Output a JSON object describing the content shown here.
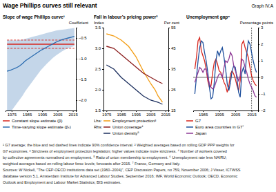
{
  "title": "Wage Phillips curves still relevant",
  "graph_label": "Graph IV.A",
  "chart_data": [
    {
      "type": "line",
      "title": "Slope of wage Phillips curve¹",
      "ylabel": "Coefficient",
      "xlim": [
        1971,
        2017
      ],
      "xticks": [
        1975,
        1985,
        1995,
        2005,
        2015
      ],
      "ylim": [
        -2.25,
        -0.25
      ],
      "yticks": [
        {
          "value": -2,
          "label": "–2.0"
        },
        {
          "value": -1.5,
          "label": "–1.5"
        },
        {
          "value": -1,
          "label": "–1.0"
        },
        {
          "value": -0.5,
          "label": "–0.5"
        }
      ],
      "series": [
        {
          "name": "Constant slope estimate (β)",
          "type": "line",
          "color": "#d7261e",
          "x": [
            1972,
            2016
          ],
          "values": [
            -0.65,
            -0.65
          ],
          "lower": [
            -0.75,
            -0.75
          ],
          "upper": [
            -0.55,
            -0.55
          ]
        },
        {
          "name": "Time-varying slope estimate (βₜ)",
          "type": "band",
          "color": "#2b6cb0",
          "x": [
            1972,
            1974,
            1976,
            1978,
            1980,
            1982,
            1984,
            1986,
            1988,
            1990,
            1992,
            1994,
            1996,
            1998,
            2000,
            2002,
            2004,
            2006,
            2008,
            2010,
            2012,
            2014,
            2016
          ],
          "values": [
            -1.3,
            -1.28,
            -1.25,
            -1.22,
            -1.18,
            -1.12,
            -1.05,
            -1.0,
            -0.95,
            -0.9,
            -0.85,
            -0.8,
            -0.76,
            -0.72,
            -0.68,
            -0.64,
            -0.6,
            -0.57,
            -0.54,
            -0.52,
            -0.5,
            -0.48,
            -0.46
          ],
          "lower": [
            -2.4,
            -2.3,
            -2.2,
            -2.1,
            -2.0,
            -1.9,
            -1.78,
            -1.68,
            -1.58,
            -1.48,
            -1.38,
            -1.28,
            -1.2,
            -1.12,
            -1.05,
            -0.98,
            -0.92,
            -0.87,
            -0.82,
            -0.78,
            -0.75,
            -0.72,
            -0.69
          ],
          "upper": [
            -0.55,
            -0.56,
            -0.56,
            -0.56,
            -0.55,
            -0.54,
            -0.52,
            -0.5,
            -0.48,
            -0.46,
            -0.44,
            -0.42,
            -0.4,
            -0.38,
            -0.36,
            -0.34,
            -0.32,
            -0.31,
            -0.3,
            -0.29,
            -0.28,
            -0.27,
            -0.26
          ]
        }
      ]
    },
    {
      "type": "line",
      "title": "Fall in labour’s pricing power²",
      "ylabel": "Index",
      "y2label": "Per cent",
      "lhs_label": "Lhs:",
      "rhs_label": "Rhs:",
      "xlim": [
        1973,
        2017
      ],
      "xticks": [
        1975,
        1985,
        1995,
        2005,
        2015
      ],
      "ylim": [
        1.5,
        3.5
      ],
      "yticks": [
        1.5,
        {
          "value": 2,
          "label": "2.0"
        },
        2.5,
        {
          "value": 3,
          "label": "3.0"
        },
        3.5
      ],
      "y2lim": [
        15,
        55
      ],
      "y2ticks": [
        15,
        25,
        35,
        45,
        55
      ],
      "series": [
        {
          "name": "Employment protection³",
          "color": "#f39c12",
          "x": [
            1975,
            1980,
            1985,
            1990,
            1995,
            2000,
            2005,
            2008,
            2010,
            2013
          ],
          "values": [
            3.35,
            3.3,
            3.2,
            3.05,
            2.8,
            2.45,
            2.15,
            2.0,
            1.85,
            1.7
          ]
        },
        {
          "name": "Union coverage⁴",
          "color": "#8b1c1c",
          "axis": "y2",
          "x": [
            1975,
            1980,
            1985,
            1990,
            1995,
            2000,
            2005,
            2010,
            2013
          ],
          "values": [
            46,
            45,
            42,
            39,
            36,
            33,
            31,
            29,
            28
          ]
        },
        {
          "name": "Union density⁵",
          "color": "#1c2f5e",
          "axis": "y2",
          "x": [
            1975,
            1980,
            1985,
            1990,
            1995,
            2000,
            2005,
            2010,
            2013
          ],
          "values": [
            37,
            35,
            31,
            28,
            25,
            22,
            20,
            19,
            18
          ]
        }
      ]
    },
    {
      "type": "line",
      "title": "Unemployment gap⁶",
      "ylabel": "Percentage points",
      "xlim": [
        1979,
        2019
      ],
      "xticks": [
        1985,
        1995,
        2005,
        2015
      ],
      "ylim": [
        -2,
        3
      ],
      "yticks": [
        {
          "value": -2,
          "label": "–2"
        },
        {
          "value": -1,
          "label": "–1"
        },
        0,
        1,
        2,
        3
      ],
      "forecast_after": 2015,
      "series": [
        {
          "name": "G7",
          "color": "#d7261e",
          "x": [
            1980,
            1981,
            1982,
            1983,
            1984,
            1985,
            1986,
            1987,
            1988,
            1989,
            1990,
            1991,
            1992,
            1993,
            1994,
            1995,
            1996,
            1997,
            1998,
            1999,
            2000,
            2001,
            2002,
            2003,
            2004,
            2005,
            2006,
            2007,
            2008,
            2009,
            2010,
            2011,
            2012,
            2013,
            2014,
            2015,
            2016,
            2017,
            2018
          ],
          "values": [
            0.5,
            1.2,
            2.2,
            2.4,
            1.6,
            1.3,
            1.0,
            0.5,
            -0.2,
            -0.6,
            -0.5,
            0.3,
            0.9,
            1.1,
            0.8,
            0.4,
            0.3,
            0,
            -0.3,
            -0.5,
            -0.9,
            -0.5,
            0.2,
            0.4,
            0.2,
            -0.1,
            -0.5,
            -0.8,
            -0.2,
            2.0,
            2.2,
            1.8,
            1.5,
            1.2,
            0.6,
            0.1,
            -0.2,
            -0.4,
            -0.5
          ]
        },
        {
          "name": "Euro area countries in G7⁷",
          "color": "#1e4f9c",
          "x": [
            1980,
            1981,
            1982,
            1983,
            1984,
            1985,
            1986,
            1987,
            1988,
            1989,
            1990,
            1991,
            1992,
            1993,
            1994,
            1995,
            1996,
            1997,
            1998,
            1999,
            2000,
            2001,
            2002,
            2003,
            2004,
            2005,
            2006,
            2007,
            2008,
            2009,
            2010,
            2011,
            2012,
            2013,
            2014,
            2015,
            2016,
            2017,
            2018
          ],
          "values": [
            -1.0,
            0,
            1.0,
            1.8,
            2.2,
            2.1,
            1.5,
            1.0,
            0.3,
            -0.6,
            -1.3,
            -1.2,
            -0.3,
            1.0,
            1.6,
            1.3,
            1.6,
            1.8,
            1.2,
            0.5,
            -0.4,
            -0.8,
            -0.3,
            0.4,
            0.7,
            0.6,
            -0.1,
            -0.9,
            -1.2,
            0.3,
            0.6,
            0.2,
            1.4,
            2.2,
            2.0,
            1.5,
            1.0,
            0.6,
            0.3
          ]
        },
        {
          "name": "Japan",
          "color": "#8e3a96",
          "x": [
            1980,
            1981,
            1982,
            1983,
            1984,
            1985,
            1986,
            1987,
            1988,
            1989,
            1990,
            1991,
            1992,
            1993,
            1994,
            1995,
            1996,
            1997,
            1998,
            1999,
            2000,
            2001,
            2002,
            2003,
            2004,
            2005,
            2006,
            2007,
            2008,
            2009,
            2010,
            2011,
            2012,
            2013,
            2014,
            2015,
            2016,
            2017,
            2018
          ],
          "values": [
            -0.3,
            0,
            0.3,
            0.6,
            0.5,
            0.3,
            0.5,
            0.5,
            0,
            -0.4,
            -0.6,
            -0.7,
            -0.6,
            -0.3,
            0,
            0.2,
            0.2,
            0,
            0.6,
            1.0,
            0.9,
            1.1,
            1.5,
            1.3,
            0.7,
            0.4,
            0.1,
            -0.2,
            0.1,
            1.1,
            1.0,
            0.6,
            0.3,
            -0.1,
            -0.4,
            -0.6,
            -0.8,
            -1.1,
            -1.2
          ]
        }
      ]
    }
  ],
  "footnotes": [
    "¹ G7 average; the blue and red dashed lines indicate 90% confidence interval.   ² Weighted averages based on rolling GDP PPP weights for",
    "G7 economies.   ³ Strictness of employment protection legislation; higher values indicate more strictness.   ⁴ Number of workers covered",
    "by collective agreements normalised on employment.   ⁵ Ratio of union membership to employment.   ⁶ Unemployment rate less NAIRU;",
    "weighted averages based on rolling labour force levels; forecasts after 2015.   ⁷ France, Germany and Italy.",
    "Sources: W Nickell, \"The CEP-OECD institutions data set (1960–2004)\", CEP Discussion Papers, no 759, November 2006; J Visser, ICTWSS",
    "database version 5.1, Amsterdam Institute for Advanced Labour Studies, September 2016; IMF, World Economic Outlook; OECD, Economic",
    "Outlook and Employment and Labour Market Statistics; BIS estimates."
  ]
}
